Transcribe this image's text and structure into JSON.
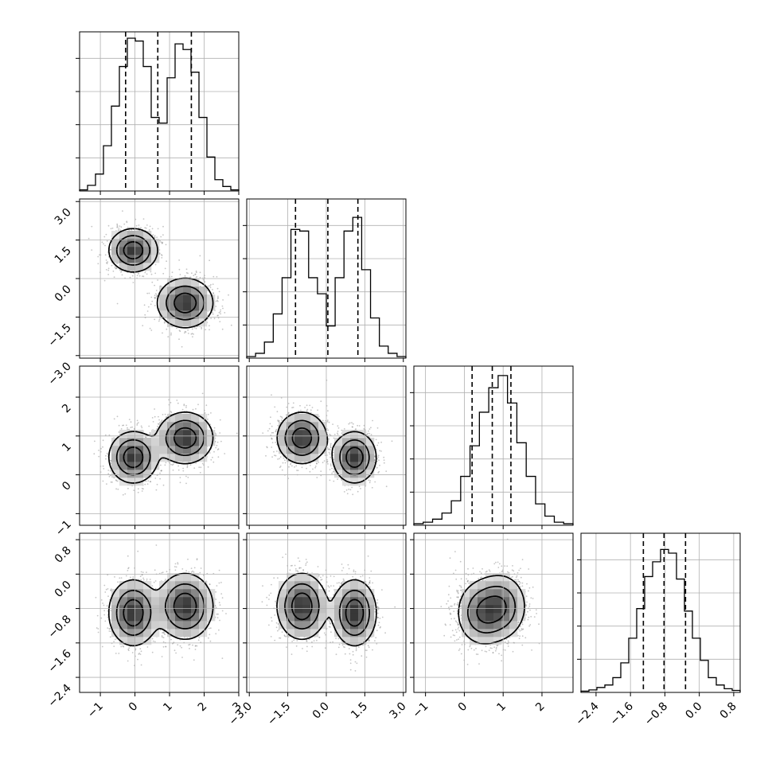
{
  "chart_data": {
    "type": "corner",
    "parameters": 4,
    "grid": true,
    "density_style": "gray scatter points with filled density bins and 3 black contour levels",
    "colors": {
      "points": "#7f7f7f",
      "lines": "#000000",
      "grid": "#b0b0b0"
    },
    "axes": [
      {
        "index": 0,
        "range": [
          -1.6,
          3.0
        ],
        "ticks": [
          -1,
          0,
          1,
          2,
          3
        ],
        "tick_labels": [
          "−1",
          "0",
          "1",
          "2",
          "3"
        ],
        "quantiles": [
          -0.27,
          0.66,
          1.63
        ],
        "hist_max": 0.27,
        "histogram": [
          0.002,
          0.01,
          0.03,
          0.08,
          0.15,
          0.22,
          0.27,
          0.265,
          0.22,
          0.13,
          0.12,
          0.2,
          0.26,
          0.25,
          0.21,
          0.13,
          0.06,
          0.02,
          0.008,
          0.002
        ]
      },
      {
        "index": 1,
        "range": [
          -3.1,
          3.1
        ],
        "ticks": [
          -3.0,
          -1.5,
          0.0,
          1.5,
          3.0
        ],
        "tick_labels": [
          "−3.0",
          "−1.5",
          "0.0",
          "1.5",
          "3.0"
        ],
        "quantiles": [
          -1.2,
          0.06,
          1.23
        ],
        "hist_max": 0.19,
        "histogram": [
          0.002,
          0.006,
          0.02,
          0.055,
          0.1,
          0.16,
          0.158,
          0.1,
          0.08,
          0.04,
          0.1,
          0.158,
          0.175,
          0.11,
          0.05,
          0.015,
          0.006,
          0.002
        ]
      },
      {
        "index": 2,
        "range": [
          -1.3,
          2.8
        ],
        "ticks": [
          -1,
          0,
          1,
          2
        ],
        "tick_labels": [
          "−1",
          "0",
          "1",
          "2"
        ],
        "quantiles": [
          0.2,
          0.72,
          1.2
        ],
        "hist_max": 0.5,
        "histogram": [
          0.005,
          0.01,
          0.02,
          0.04,
          0.08,
          0.16,
          0.26,
          0.37,
          0.45,
          0.49,
          0.4,
          0.27,
          0.16,
          0.07,
          0.03,
          0.01,
          0.005
        ]
      },
      {
        "index": 3,
        "range": [
          -2.75,
          0.95
        ],
        "ticks": [
          -2.4,
          -1.6,
          -0.8,
          0.0,
          0.8
        ],
        "tick_labels": [
          "−2.4",
          "−1.6",
          "−0.8",
          "0.0",
          "0.8"
        ],
        "quantiles": [
          -1.3,
          -0.82,
          -0.32
        ],
        "hist_max": 0.62,
        "histogram": [
          0.005,
          0.01,
          0.02,
          0.03,
          0.06,
          0.12,
          0.22,
          0.34,
          0.47,
          0.53,
          0.58,
          0.565,
          0.46,
          0.33,
          0.22,
          0.13,
          0.06,
          0.03,
          0.015,
          0.008
        ]
      }
    ],
    "modes": [
      {
        "x": [
          -0.05,
          1.1,
          0.45,
          -0.9
        ],
        "sd": [
          0.35,
          0.42,
          0.33,
          0.38
        ]
      },
      {
        "x": [
          1.45,
          -0.95,
          0.95,
          -0.75
        ],
        "sd": [
          0.4,
          0.48,
          0.33,
          0.38
        ]
      }
    ],
    "scatter_seed": 7
  }
}
